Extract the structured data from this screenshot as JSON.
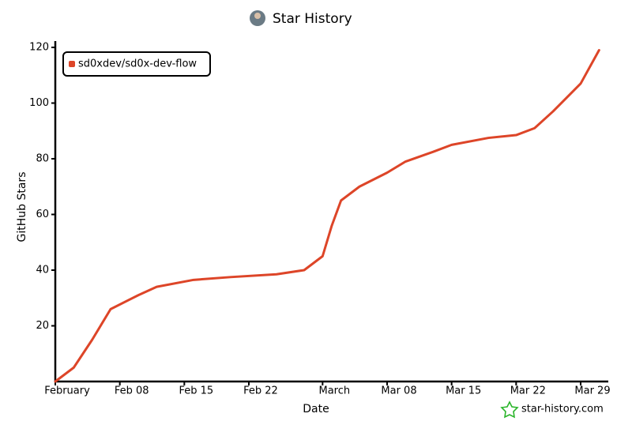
{
  "chart_data": {
    "type": "line",
    "title": "Star History",
    "xlabel": "Date",
    "ylabel": "GitHub Stars",
    "watermark": "star-history.com",
    "x": [
      0,
      2,
      4,
      6,
      9,
      11,
      15,
      19,
      24,
      27,
      29,
      30,
      31,
      33,
      36,
      38,
      41,
      43,
      47,
      50,
      52,
      54,
      57,
      59
    ],
    "series": [
      {
        "name": "sd0xdev/sd0x-dev-flow",
        "color": "#dd4528",
        "values": [
          0,
          5,
          15,
          26,
          31,
          34,
          36.5,
          37.5,
          38.5,
          40,
          45,
          56,
          65,
          70,
          75,
          79,
          82.5,
          85,
          87.5,
          88.5,
          91,
          97,
          107,
          119
        ]
      }
    ],
    "xlim": [
      0,
      60
    ],
    "xticks": [
      {
        "value": 0,
        "label": "February"
      },
      {
        "value": 7,
        "label": "Feb 08"
      },
      {
        "value": 14,
        "label": "Feb 15"
      },
      {
        "value": 21,
        "label": "Feb 22"
      },
      {
        "value": 29,
        "label": "March"
      },
      {
        "value": 36,
        "label": "Mar 08"
      },
      {
        "value": 43,
        "label": "Mar 15"
      },
      {
        "value": 50,
        "label": "Mar 22"
      },
      {
        "value": 57,
        "label": "Mar 29"
      }
    ],
    "ylim": [
      0,
      120
    ],
    "yticks": [
      20,
      40,
      60,
      80,
      100,
      120
    ],
    "grid": false,
    "legend": "top-left"
  }
}
